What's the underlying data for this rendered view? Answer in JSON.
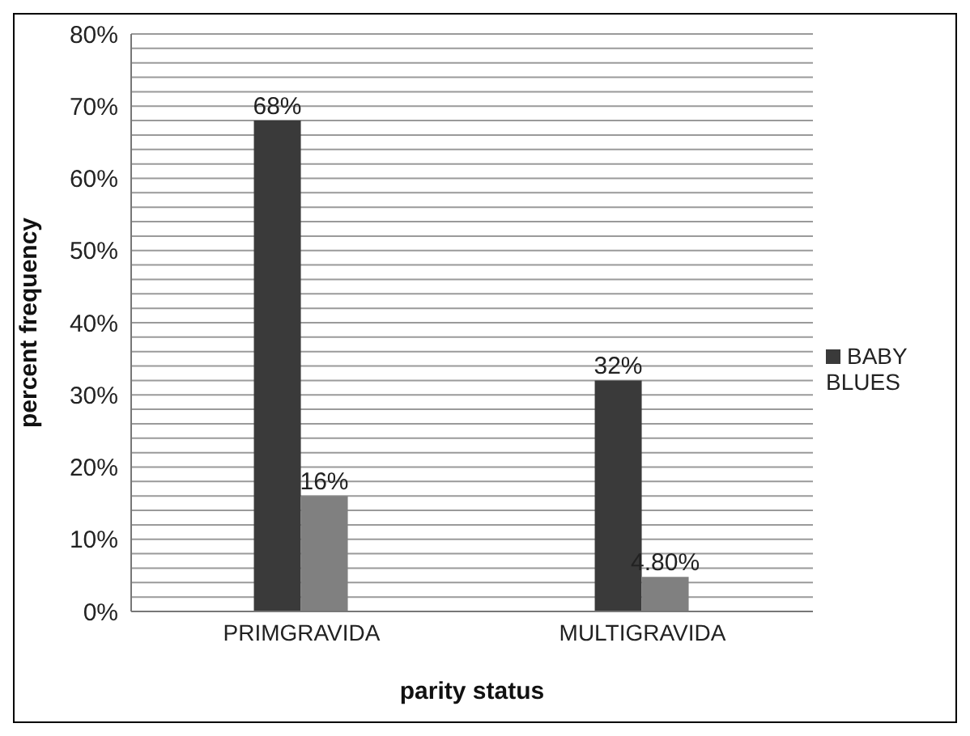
{
  "chart_data": {
    "type": "bar",
    "xlabel": "parity status",
    "ylabel": "percent  frequency",
    "categories": [
      "PRIMGRAVIDA",
      "MULTIGRAVIDA"
    ],
    "series": [
      {
        "name": "BABY BLUES",
        "color": "#3a3a3a",
        "values": [
          68,
          32
        ],
        "value_labels": [
          "68%",
          "32%"
        ]
      },
      {
        "color": "#808080",
        "values": [
          16,
          4.8
        ],
        "value_labels": [
          "16%",
          "4.80%"
        ]
      }
    ],
    "ylim": [
      0,
      80
    ],
    "yticks": [
      {
        "value": 0,
        "label": "0%"
      },
      {
        "value": 2,
        "label": null
      },
      {
        "value": 4,
        "label": null
      },
      {
        "value": 6,
        "label": null
      },
      {
        "value": 8,
        "label": null
      },
      {
        "value": 10,
        "label": "10%"
      },
      {
        "value": 12,
        "label": null
      },
      {
        "value": 14,
        "label": null
      },
      {
        "value": 16,
        "label": null
      },
      {
        "value": 18,
        "label": null
      },
      {
        "value": 20,
        "label": "20%"
      },
      {
        "value": 22,
        "label": null
      },
      {
        "value": 24,
        "label": null
      },
      {
        "value": 26,
        "label": null
      },
      {
        "value": 28,
        "label": null
      },
      {
        "value": 30,
        "label": "30%"
      },
      {
        "value": 32,
        "label": null
      },
      {
        "value": 34,
        "label": null
      },
      {
        "value": 36,
        "label": null
      },
      {
        "value": 38,
        "label": null
      },
      {
        "value": 40,
        "label": "40%"
      },
      {
        "value": 42,
        "label": null
      },
      {
        "value": 44,
        "label": null
      },
      {
        "value": 46,
        "label": null
      },
      {
        "value": 48,
        "label": null
      },
      {
        "value": 50,
        "label": "50%"
      },
      {
        "value": 52,
        "label": null
      },
      {
        "value": 54,
        "label": null
      },
      {
        "value": 56,
        "label": null
      },
      {
        "value": 58,
        "label": null
      },
      {
        "value": 60,
        "label": "60%"
      },
      {
        "value": 62,
        "label": null
      },
      {
        "value": 64,
        "label": null
      },
      {
        "value": 66,
        "label": null
      },
      {
        "value": 68,
        "label": null
      },
      {
        "value": 70,
        "label": "70%"
      },
      {
        "value": 72,
        "label": null
      },
      {
        "value": 74,
        "label": null
      },
      {
        "value": 76,
        "label": null
      },
      {
        "value": 78,
        "label": null
      },
      {
        "value": 80,
        "label": "80%"
      }
    ],
    "grid": "y",
    "legend": "right"
  }
}
